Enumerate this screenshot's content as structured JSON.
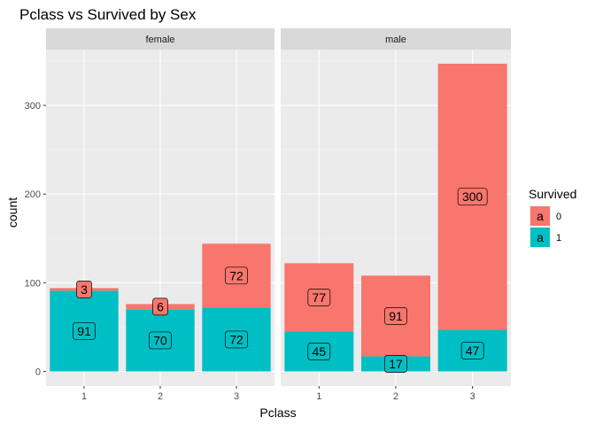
{
  "chart_data": {
    "type": "bar",
    "stacked": true,
    "title": "Pclass vs Survived by Sex",
    "xlabel": "Pclass",
    "ylabel": "count",
    "categories": [
      "1",
      "2",
      "3"
    ],
    "ylim": [
      0,
      365
    ],
    "yticks": [
      0,
      100,
      200,
      300
    ],
    "grid": true,
    "legend": {
      "title": "Survived",
      "placement": "right",
      "glyph": "a",
      "entries": [
        {
          "label": "0",
          "color": "#F8766D"
        },
        {
          "label": "1",
          "color": "#00BFC4"
        }
      ]
    },
    "colors": {
      "0": "#F8766D",
      "1": "#00BFC4"
    },
    "facets": [
      {
        "name": "female",
        "series": [
          {
            "name": "1",
            "values": [
              91,
              70,
              72
            ]
          },
          {
            "name": "0",
            "values": [
              3,
              6,
              72
            ]
          }
        ]
      },
      {
        "name": "male",
        "series": [
          {
            "name": "1",
            "values": [
              45,
              17,
              47
            ]
          },
          {
            "name": "0",
            "values": [
              77,
              91,
              300
            ]
          }
        ]
      }
    ]
  }
}
